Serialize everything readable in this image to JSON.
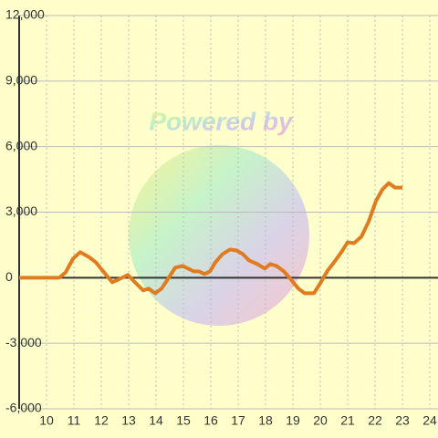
{
  "chart_data": {
    "type": "line",
    "watermark": "Powered by",
    "x": [
      9,
      10.47,
      10.7,
      10.97,
      11.23,
      11.53,
      11.8,
      12.07,
      12.4,
      12.63,
      12.97,
      13.23,
      13.53,
      13.73,
      13.97,
      14.2,
      14.4,
      14.7,
      14.97,
      15.17,
      15.37,
      15.57,
      15.77,
      15.97,
      16.17,
      16.43,
      16.7,
      16.93,
      17.17,
      17.4,
      17.7,
      17.97,
      18.17,
      18.4,
      18.67,
      18.9,
      19.2,
      19.43,
      19.77,
      20.0,
      20.27,
      20.53,
      20.77,
      21.0,
      21.23,
      21.5,
      21.77,
      22.03,
      22.27,
      22.5,
      22.73,
      23.0
    ],
    "series": [
      {
        "color": "#e07b20",
        "values": [
          0,
          0,
          250,
          875,
          1170,
          960,
          710,
          290,
          -210,
          -80,
          125,
          -210,
          -580,
          -500,
          -710,
          -500,
          -125,
          460,
          540,
          420,
          290,
          290,
          170,
          290,
          710,
          1080,
          1290,
          1250,
          1080,
          790,
          625,
          420,
          625,
          540,
          290,
          -40,
          -500,
          -710,
          -710,
          -250,
          330,
          750,
          1170,
          1625,
          1580,
          1875,
          2580,
          3500,
          4040,
          4330,
          4125,
          4125
        ]
      }
    ],
    "xlim": [
      9,
      24.3
    ],
    "ylim": [
      -6000,
      12000
    ],
    "xticks": [
      10,
      11,
      12,
      13,
      14,
      15,
      16,
      17,
      18,
      19,
      20,
      21,
      22,
      23,
      24
    ],
    "yticks": [
      {
        "value": -6000,
        "label": "-6,000"
      },
      {
        "value": -3000,
        "label": "-3,000"
      },
      0,
      {
        "value": 3000,
        "label": "3,000"
      },
      {
        "value": 6000,
        "label": "6,000"
      },
      {
        "value": 9000,
        "label": "9,000"
      },
      {
        "value": 12000,
        "label": "12,000"
      }
    ],
    "grid": true
  }
}
